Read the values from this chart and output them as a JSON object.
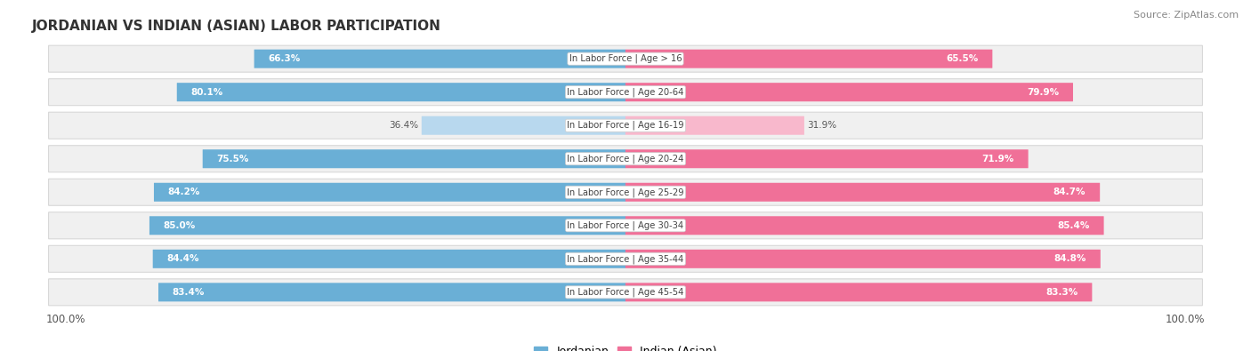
{
  "title": "JORDANIAN VS INDIAN (ASIAN) LABOR PARTICIPATION",
  "source": "Source: ZipAtlas.com",
  "categories": [
    "In Labor Force | Age > 16",
    "In Labor Force | Age 20-64",
    "In Labor Force | Age 16-19",
    "In Labor Force | Age 20-24",
    "In Labor Force | Age 25-29",
    "In Labor Force | Age 30-34",
    "In Labor Force | Age 35-44",
    "In Labor Force | Age 45-54"
  ],
  "jordanian_values": [
    66.3,
    80.1,
    36.4,
    75.5,
    84.2,
    85.0,
    84.4,
    83.4
  ],
  "indian_values": [
    65.5,
    79.9,
    31.9,
    71.9,
    84.7,
    85.4,
    84.8,
    83.3
  ],
  "jordanian_color": "#6aafd6",
  "jordanian_color_light": "#b8d8ee",
  "indian_color": "#f07098",
  "indian_color_light": "#f8b8cc",
  "row_bg_color": "#f0f0f0",
  "row_border_color": "#d8d8d8",
  "legend_jordanian": "Jordanian",
  "legend_indian": "Indian (Asian)",
  "max_value": 100.0,
  "background_color": "#ffffff"
}
